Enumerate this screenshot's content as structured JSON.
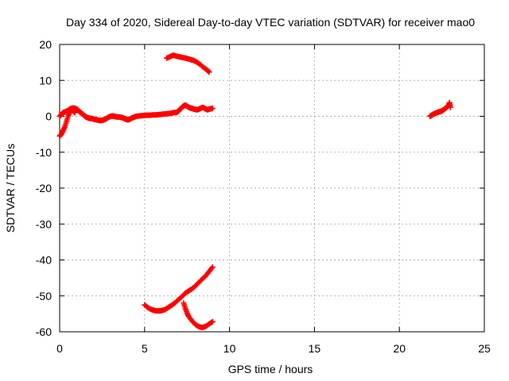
{
  "chart_data": {
    "type": "scatter",
    "title": "Day 334 of 2020, Sidereal Day-to-day VTEC variation (SDTVAR) for receiver mao0",
    "xlabel": "GPS time / hours",
    "ylabel": "SDTVAR / TECUs",
    "xlim": [
      0,
      25
    ],
    "ylim": [
      -60,
      20
    ],
    "x_ticks": [
      0,
      5,
      10,
      15,
      20,
      25
    ],
    "y_ticks": [
      20,
      10,
      0,
      -10,
      -20,
      -30,
      -40,
      -50,
      -60
    ],
    "grid": true,
    "legend": "none",
    "marker": "plus",
    "color": "#ff0000",
    "series": [
      {
        "values": [
          [
            0.0,
            -5.5
          ],
          [
            0.1,
            -5.0
          ],
          [
            0.2,
            -4.0
          ],
          [
            0.3,
            -3.0
          ],
          [
            0.4,
            -1.5
          ],
          [
            0.5,
            0.0
          ],
          [
            0.6,
            1.2
          ],
          [
            0.7,
            1.8
          ],
          [
            0.8,
            1.5
          ],
          [
            0.9,
            1.0
          ]
        ]
      },
      {
        "values": [
          [
            0.0,
            0.0
          ],
          [
            0.1,
            0.5
          ],
          [
            0.2,
            1.0
          ],
          [
            0.3,
            1.2
          ],
          [
            0.4,
            1.4
          ],
          [
            0.5,
            1.6
          ],
          [
            0.6,
            2.0
          ],
          [
            0.7,
            2.2
          ],
          [
            0.8,
            2.3
          ],
          [
            0.9,
            2.2
          ],
          [
            1.0,
            2.0
          ],
          [
            1.1,
            1.6
          ],
          [
            1.2,
            1.2
          ],
          [
            1.3,
            0.8
          ],
          [
            1.4,
            0.4
          ],
          [
            1.5,
            0.0
          ],
          [
            1.6,
            -0.3
          ],
          [
            1.7,
            -0.5
          ],
          [
            1.8,
            -0.6
          ],
          [
            1.9,
            -0.6
          ],
          [
            2.0,
            -0.8
          ],
          [
            2.1,
            -0.9
          ],
          [
            2.2,
            -1.0
          ],
          [
            2.3,
            -1.1
          ],
          [
            2.4,
            -1.2
          ],
          [
            2.5,
            -1.1
          ],
          [
            2.6,
            -1.0
          ],
          [
            2.7,
            -0.8
          ],
          [
            2.8,
            -0.5
          ],
          [
            2.9,
            -0.2
          ],
          [
            3.0,
            0.0
          ],
          [
            3.1,
            0.1
          ],
          [
            3.2,
            0.0
          ],
          [
            3.3,
            -0.1
          ],
          [
            3.4,
            -0.2
          ],
          [
            3.5,
            -0.2
          ],
          [
            3.6,
            -0.3
          ],
          [
            3.7,
            -0.4
          ],
          [
            3.8,
            -0.6
          ],
          [
            3.9,
            -0.8
          ],
          [
            4.0,
            -1.0
          ],
          [
            4.1,
            -0.9
          ],
          [
            4.2,
            -0.6
          ],
          [
            4.3,
            -0.4
          ],
          [
            4.4,
            -0.2
          ],
          [
            4.5,
            0.0
          ],
          [
            4.7,
            0.1
          ],
          [
            4.9,
            0.2
          ],
          [
            5.1,
            0.3
          ],
          [
            5.3,
            0.3
          ],
          [
            5.5,
            0.4
          ],
          [
            5.7,
            0.4
          ],
          [
            5.9,
            0.5
          ],
          [
            6.1,
            0.6
          ],
          [
            6.3,
            0.7
          ],
          [
            6.5,
            0.8
          ],
          [
            6.7,
            1.0
          ],
          [
            6.9,
            1.1
          ],
          [
            7.0,
            1.5
          ],
          [
            7.1,
            2.0
          ],
          [
            7.2,
            2.5
          ],
          [
            7.3,
            2.9
          ],
          [
            7.4,
            3.1
          ],
          [
            7.5,
            2.8
          ],
          [
            7.6,
            2.5
          ],
          [
            7.7,
            2.3
          ],
          [
            7.8,
            2.2
          ],
          [
            7.9,
            2.0
          ],
          [
            8.0,
            1.9
          ],
          [
            8.1,
            1.8
          ],
          [
            8.2,
            2.0
          ],
          [
            8.3,
            2.2
          ],
          [
            8.4,
            2.5
          ],
          [
            8.5,
            2.3
          ],
          [
            8.6,
            2.0
          ],
          [
            8.7,
            1.8
          ],
          [
            8.8,
            2.0
          ],
          [
            8.9,
            2.1
          ],
          [
            9.0,
            2.2
          ]
        ]
      },
      {
        "values": [
          [
            6.3,
            16.2
          ],
          [
            6.5,
            16.6
          ],
          [
            6.7,
            17.0
          ],
          [
            6.9,
            16.7
          ],
          [
            7.1,
            16.5
          ],
          [
            7.3,
            16.3
          ],
          [
            7.5,
            16.1
          ],
          [
            7.7,
            15.8
          ],
          [
            7.9,
            15.5
          ],
          [
            8.1,
            15.0
          ],
          [
            8.3,
            14.3
          ],
          [
            8.5,
            13.5
          ],
          [
            8.7,
            12.8
          ],
          [
            8.8,
            12.3
          ]
        ]
      },
      {
        "values": [
          [
            5.0,
            -52.5
          ],
          [
            5.2,
            -53.3
          ],
          [
            5.4,
            -53.8
          ],
          [
            5.6,
            -54.1
          ],
          [
            5.8,
            -54.2
          ],
          [
            6.0,
            -54.1
          ],
          [
            6.2,
            -53.8
          ],
          [
            6.4,
            -53.2
          ],
          [
            6.6,
            -52.6
          ],
          [
            6.8,
            -51.9
          ],
          [
            7.0,
            -51.0
          ],
          [
            7.2,
            -50.2
          ],
          [
            7.4,
            -49.2
          ],
          [
            7.6,
            -48.6
          ],
          [
            7.8,
            -48.0
          ],
          [
            8.0,
            -47.2
          ],
          [
            8.2,
            -46.2
          ],
          [
            8.4,
            -45.3
          ],
          [
            8.6,
            -44.4
          ],
          [
            8.8,
            -43.2
          ],
          [
            9.0,
            -42.0
          ]
        ]
      },
      {
        "values": [
          [
            7.3,
            -52.0
          ],
          [
            7.4,
            -53.5
          ],
          [
            7.5,
            -54.8
          ],
          [
            7.6,
            -55.8
          ],
          [
            7.8,
            -57.0
          ],
          [
            8.0,
            -58.0
          ],
          [
            8.2,
            -58.6
          ],
          [
            8.4,
            -58.8
          ],
          [
            8.6,
            -58.5
          ],
          [
            8.8,
            -57.8
          ],
          [
            9.0,
            -57.2
          ]
        ]
      },
      {
        "values": [
          [
            21.8,
            0.0
          ],
          [
            21.9,
            0.3
          ],
          [
            22.0,
            0.6
          ],
          [
            22.1,
            0.8
          ],
          [
            22.2,
            1.0
          ],
          [
            22.3,
            1.2
          ],
          [
            22.4,
            1.3
          ],
          [
            22.5,
            1.5
          ],
          [
            22.6,
            1.8
          ],
          [
            22.7,
            2.2
          ],
          [
            22.8,
            2.6
          ],
          [
            22.9,
            3.0
          ],
          [
            22.95,
            3.8
          ],
          [
            23.0,
            2.5
          ]
        ]
      }
    ]
  }
}
